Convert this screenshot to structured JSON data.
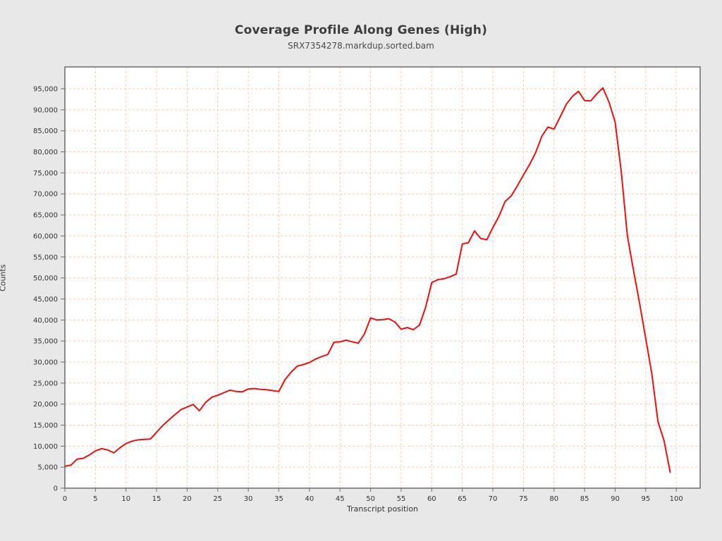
{
  "page": {
    "background": "#e8e8e8"
  },
  "header": {
    "title": "Coverage Profile Along Genes (High)",
    "subtitle": "SRX7354278.markdup.sorted.bam"
  },
  "chart_data": {
    "type": "line",
    "title": "Coverage Profile Along Genes (High)",
    "subtitle": "SRX7354278.markdup.sorted.bam",
    "xlabel": "Transcript position",
    "ylabel": "Counts",
    "x_ticks": [
      0,
      5,
      10,
      15,
      20,
      25,
      30,
      35,
      40,
      45,
      50,
      55,
      60,
      65,
      70,
      75,
      80,
      85,
      90,
      95,
      100
    ],
    "y_ticks": [
      0,
      5000,
      10000,
      15000,
      20000,
      25000,
      30000,
      35000,
      40000,
      45000,
      50000,
      55000,
      60000,
      65000,
      70000,
      75000,
      80000,
      85000,
      90000,
      95000
    ],
    "xlim": [
      0,
      103.9
    ],
    "ylim": [
      0,
      100200
    ],
    "grid": {
      "visible": true,
      "style": "dashed",
      "color": "#f6cda6"
    },
    "plot_background": "#ffffff",
    "border_color": "#6b6b6b",
    "legend_position": "none",
    "series": [
      {
        "name": "SRX7354278.markdup.sorted.bam",
        "color": "#f50d0d",
        "x_start": 0,
        "x_step": 1,
        "values": [
          5200,
          5500,
          6900,
          7100,
          7900,
          8900,
          9400,
          9100,
          8400,
          9600,
          10600,
          11200,
          11500,
          11600,
          11700,
          13300,
          14900,
          16200,
          17500,
          18700,
          19300,
          19900,
          18400,
          20400,
          21600,
          22100,
          22700,
          23300,
          23000,
          22900,
          23600,
          23700,
          23500,
          23400,
          23200,
          23000,
          25800,
          27600,
          29000,
          29400,
          29900,
          30700,
          31300,
          31800,
          34700,
          34800,
          35200,
          34800,
          34500,
          36700,
          40500,
          40000,
          40100,
          40300,
          39500,
          37800,
          38200,
          37700,
          38800,
          43000,
          48900,
          49600,
          49800,
          50300,
          50900,
          58100,
          58400,
          61200,
          59400,
          59100,
          62000,
          64700,
          68200,
          69500,
          71900,
          74500,
          77000,
          79800,
          83700,
          85900,
          85400,
          88300,
          91300,
          93200,
          94400,
          92200,
          92100,
          93800,
          95200,
          91800,
          87000,
          75300,
          60000,
          51800,
          44000,
          35600,
          27200,
          15800,
          11300,
          3800
        ]
      }
    ]
  }
}
